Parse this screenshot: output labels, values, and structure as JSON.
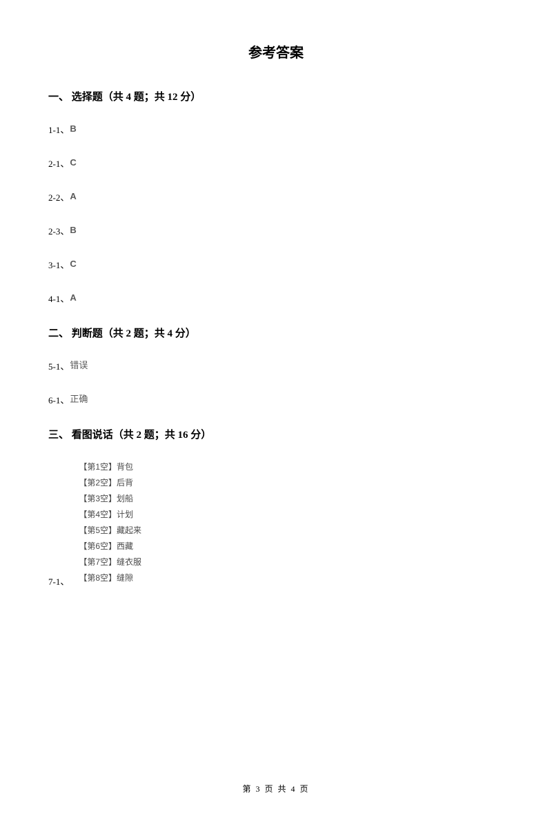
{
  "title": "参考答案",
  "sections": [
    {
      "header": "一、 选择题（共 4 题；共 12 分）",
      "answers": [
        {
          "num": "1-1、",
          "value": "B",
          "type": "letter"
        },
        {
          "num": "2-1、",
          "value": "C",
          "type": "letter"
        },
        {
          "num": "2-2、",
          "value": "A",
          "type": "letter"
        },
        {
          "num": "2-3、",
          "value": "B",
          "type": "letter"
        },
        {
          "num": "3-1、",
          "value": "C",
          "type": "letter"
        },
        {
          "num": "4-1、",
          "value": "A",
          "type": "letter"
        }
      ]
    },
    {
      "header": "二、 判断题（共 2 题；共 4 分）",
      "answers": [
        {
          "num": "5-1、",
          "value": "错误",
          "type": "text"
        },
        {
          "num": "6-1、",
          "value": "正确",
          "type": "text"
        }
      ]
    },
    {
      "header": "三、 看图说话（共 2 题；共 16 分）",
      "fill": {
        "num": "7-1、",
        "items": [
          "【第1空】背包",
          "【第2空】后背",
          "【第3空】划船",
          "【第4空】计划",
          "【第5空】藏起来",
          "【第6空】西藏",
          "【第7空】缝衣服",
          "【第8空】缝隙"
        ]
      }
    }
  ],
  "footer": {
    "text": "第 3 页 共 4 页"
  },
  "colors": {
    "background": "#ffffff",
    "text_primary": "#000000",
    "text_answer": "#5a5a5a"
  }
}
